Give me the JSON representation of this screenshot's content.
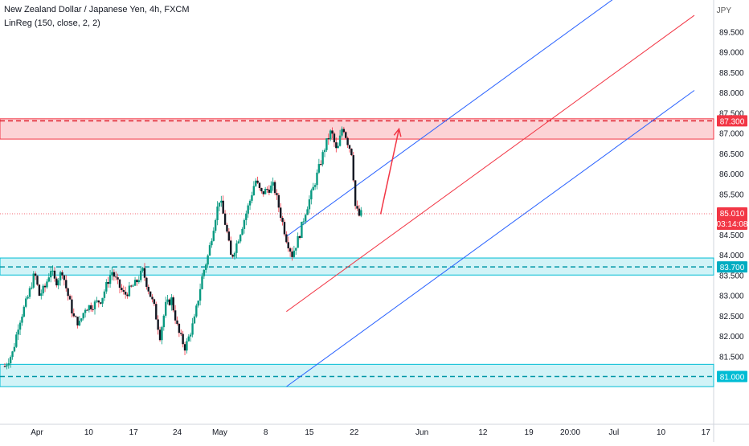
{
  "chart_data": {
    "type": "candlestick",
    "title": "New Zealand Dollar / Japanese Yen, 4h, FXCM",
    "indicator": "LinReg (150, close, 2, 2)",
    "currency": "JPY",
    "ylim": [
      80.65,
      90.0
    ],
    "price_ticks": [
      "89.500",
      "89.000",
      "88.500",
      "88.000",
      "87.500",
      "87.000",
      "86.500",
      "86.000",
      "85.500",
      "85.000",
      "84.500",
      "84.000",
      "83.500",
      "83.000",
      "82.500",
      "82.000",
      "81.500",
      "81.000"
    ],
    "time_ticks": [
      "Apr",
      "10",
      "17",
      "24",
      "May",
      "8",
      "15",
      "22",
      "Jun",
      "12",
      "19",
      "20:00",
      "Jul",
      "10",
      "17"
    ],
    "price_labels": {
      "resistance": "87.300",
      "current": "85.010",
      "countdown": "03:14:08",
      "support_1": "83.700",
      "support_2": "81.000"
    },
    "zones": [
      {
        "name": "resistance-zone",
        "low": 86.85,
        "high": 87.35,
        "level": 87.3,
        "color": "#f23645"
      },
      {
        "name": "support-zone-upper",
        "low": 83.5,
        "high": 83.92,
        "level": 83.7,
        "color": "#00bcd4"
      },
      {
        "name": "support-zone-lower",
        "low": 80.75,
        "high": 81.3,
        "level": 81.0,
        "color": "#00bcd4"
      }
    ],
    "current_price": 85.01,
    "regression_channel": {
      "start_x": 24.5,
      "end_x": 60,
      "mid_start": 82.6,
      "mid_end": 89.9,
      "width": 1.85,
      "mid_color": "#f23645",
      "band_color": "#2962ff"
    },
    "projection_arrow": {
      "from": [
        32.7,
        85.0
      ],
      "to": [
        34.3,
        87.1
      ],
      "color": "#f23645"
    },
    "ohlc_anchors": [
      [
        0,
        81.25
      ],
      [
        0.7,
        81.6
      ],
      [
        1.2,
        82.3
      ],
      [
        2,
        82.95
      ],
      [
        2.6,
        83.55
      ],
      [
        3,
        83.0
      ],
      [
        3.5,
        83.2
      ],
      [
        4,
        83.65
      ],
      [
        4.4,
        83.3
      ],
      [
        5,
        83.6
      ],
      [
        5.4,
        83.1
      ],
      [
        6,
        82.45
      ],
      [
        6.5,
        82.3
      ],
      [
        7,
        82.7
      ],
      [
        7.6,
        82.75
      ],
      [
        8.4,
        82.9
      ],
      [
        9.3,
        83.6
      ],
      [
        9.8,
        83.3
      ],
      [
        10.4,
        83.0
      ],
      [
        10.9,
        83.15
      ],
      [
        11.4,
        83.3
      ],
      [
        12,
        83.6
      ],
      [
        13,
        82.7
      ],
      [
        13.5,
        82.0
      ],
      [
        14,
        82.75
      ],
      [
        14.5,
        82.9
      ],
      [
        15.1,
        82.1
      ],
      [
        15.7,
        81.7
      ],
      [
        16.5,
        82.4
      ],
      [
        17.2,
        83.5
      ],
      [
        17.7,
        84.0
      ],
      [
        18.3,
        84.9
      ],
      [
        18.7,
        85.4
      ],
      [
        19.3,
        84.6
      ],
      [
        19.7,
        83.9
      ],
      [
        20.2,
        84.3
      ],
      [
        20.7,
        84.75
      ],
      [
        21.3,
        85.3
      ],
      [
        21.8,
        85.85
      ],
      [
        22.3,
        85.5
      ],
      [
        22.8,
        85.6
      ],
      [
        23.4,
        85.7
      ],
      [
        23.9,
        85.1
      ],
      [
        24.5,
        84.4
      ],
      [
        25,
        84.0
      ],
      [
        25.6,
        84.45
      ],
      [
        26.2,
        85.1
      ],
      [
        26.8,
        85.6
      ],
      [
        27.3,
        86.1
      ],
      [
        27.9,
        86.7
      ],
      [
        28.4,
        87.05
      ],
      [
        28.9,
        86.5
      ],
      [
        29.4,
        87.2
      ],
      [
        29.8,
        86.8
      ],
      [
        30.2,
        86.5
      ],
      [
        30.5,
        85.2
      ],
      [
        30.8,
        84.95
      ],
      [
        31,
        85.01
      ]
    ]
  }
}
